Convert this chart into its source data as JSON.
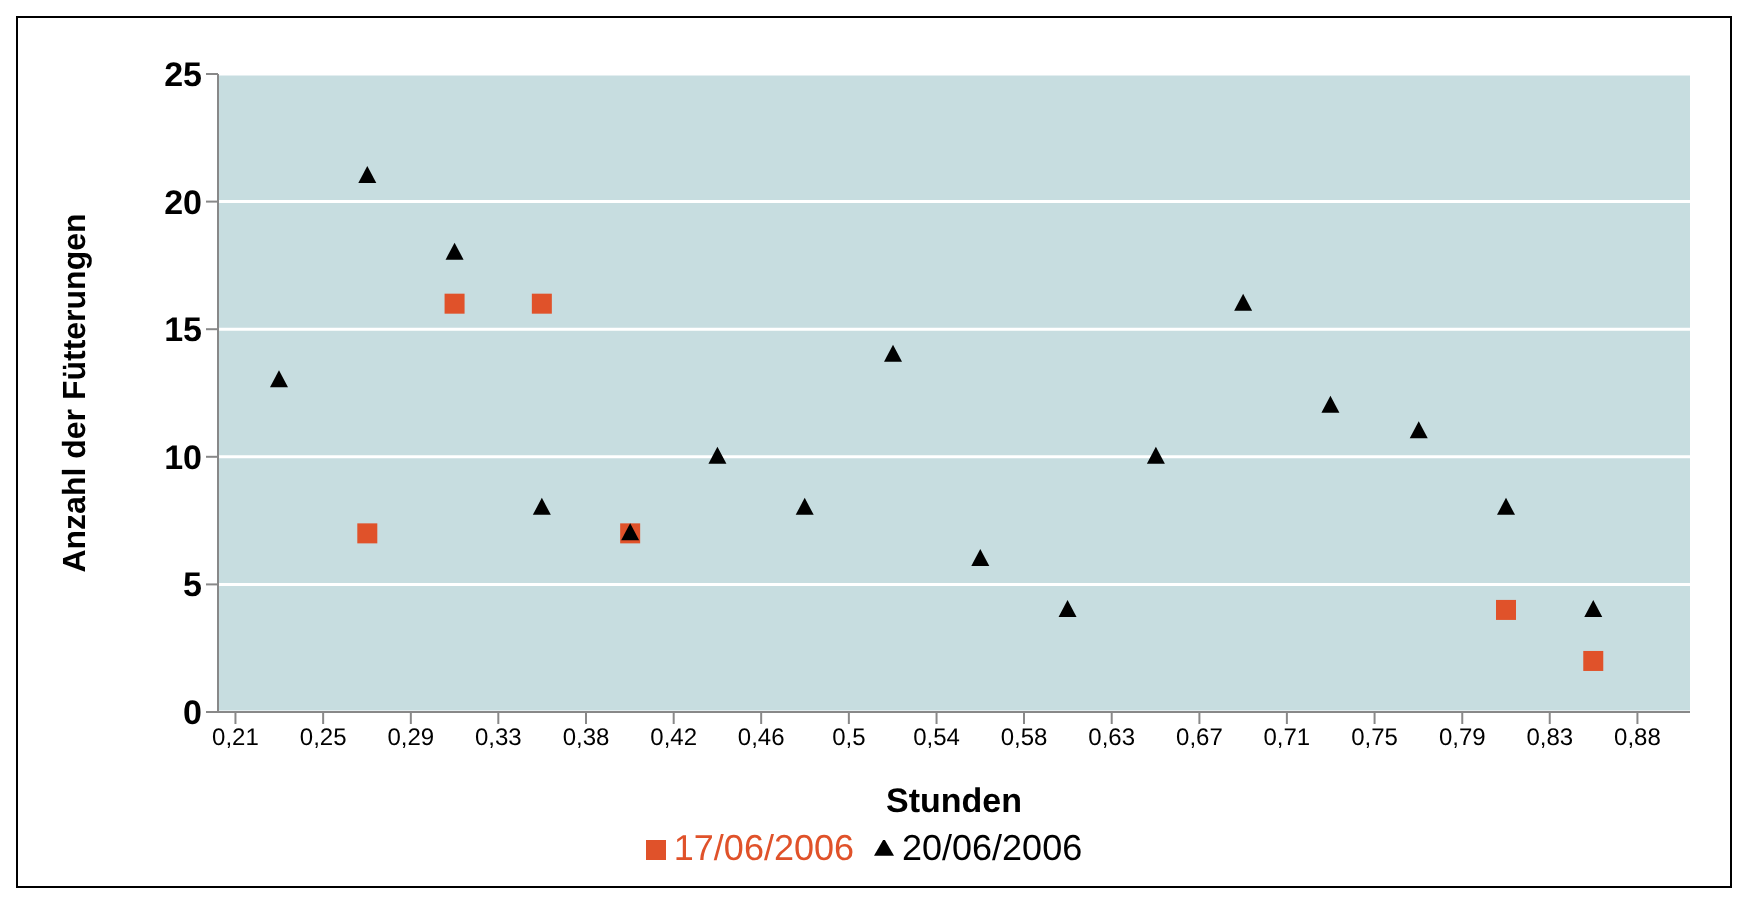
{
  "chart_data": {
    "type": "scatter",
    "xlabel": "Stunden",
    "ylabel": "Anzahl der Fütterungen",
    "xlim": [
      0.2,
      0.9
    ],
    "xticks": [
      {
        "value": 0.2083,
        "label": "0,21"
      },
      {
        "value": 0.25,
        "label": "0,25"
      },
      {
        "value": 0.2917,
        "label": "0,29"
      },
      {
        "value": 0.3333,
        "label": "0,33"
      },
      {
        "value": 0.375,
        "label": "0,38"
      },
      {
        "value": 0.4167,
        "label": "0,42"
      },
      {
        "value": 0.4583,
        "label": "0,46"
      },
      {
        "value": 0.5,
        "label": "0,5"
      },
      {
        "value": 0.5417,
        "label": "0,54"
      },
      {
        "value": 0.5833,
        "label": "0,58"
      },
      {
        "value": 0.625,
        "label": "0,63"
      },
      {
        "value": 0.6667,
        "label": "0,67"
      },
      {
        "value": 0.7083,
        "label": "0,71"
      },
      {
        "value": 0.75,
        "label": "0,75"
      },
      {
        "value": 0.7917,
        "label": "0,79"
      },
      {
        "value": 0.8333,
        "label": "0,83"
      },
      {
        "value": 0.875,
        "label": "0,88"
      }
    ],
    "ylim": [
      0,
      25
    ],
    "yticks": [
      0,
      5,
      10,
      15,
      20,
      25
    ],
    "grid": "y",
    "legend": "bottom",
    "series": [
      {
        "name": "17/06/2006",
        "color": "#e0522a",
        "marker": "square",
        "x": [
          0.271,
          0.3125,
          0.354,
          0.396,
          0.8125,
          0.854
        ],
        "values": [
          7,
          16,
          16,
          7,
          4,
          2
        ]
      },
      {
        "name": "20/06/2006",
        "color": "#000000",
        "marker": "triangle",
        "x": [
          0.229,
          0.271,
          0.3125,
          0.354,
          0.396,
          0.4375,
          0.479,
          0.521,
          0.5625,
          0.604,
          0.646,
          0.6875,
          0.729,
          0.771,
          0.8125,
          0.854
        ],
        "values": [
          13,
          21,
          18,
          8,
          7,
          10,
          8,
          14,
          6,
          4,
          10,
          16,
          12,
          11,
          8,
          4
        ]
      }
    ]
  }
}
